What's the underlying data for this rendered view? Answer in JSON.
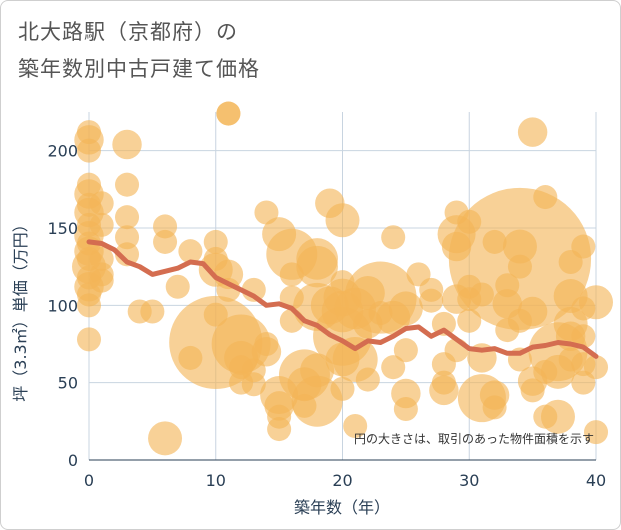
{
  "chart_data": {
    "type": "scatter",
    "title_lines": [
      "北大路駅（京都府）の",
      "築年数別中古戸建て価格"
    ],
    "xlabel": "築年数（年）",
    "ylabel": "坪（3.3㎡）単価（万円）",
    "xlim": [
      0,
      40
    ],
    "ylim": [
      0,
      225
    ],
    "x_ticks": [
      "0",
      "10",
      "20",
      "30",
      "40"
    ],
    "y_ticks": [
      "0",
      "50",
      "100",
      "150",
      "200"
    ],
    "grid": true,
    "note": "円の大きさは、取引のあった物件面積を示す",
    "colors": {
      "bubble": "#f3b457",
      "trend": "#d46d50",
      "grid": "#c8d4e0"
    },
    "series": [
      {
        "name": "取引",
        "points": [
          {
            "x": 0,
            "y": 212,
            "s": 2
          },
          {
            "x": 0,
            "y": 207,
            "s": 3
          },
          {
            "x": 0,
            "y": 200,
            "s": 2
          },
          {
            "x": 0,
            "y": 178,
            "s": 2
          },
          {
            "x": 0,
            "y": 172,
            "s": 3
          },
          {
            "x": 0,
            "y": 165,
            "s": 2
          },
          {
            "x": 0,
            "y": 160,
            "s": 3
          },
          {
            "x": 0,
            "y": 152,
            "s": 2
          },
          {
            "x": 0,
            "y": 145,
            "s": 3
          },
          {
            "x": 0,
            "y": 140,
            "s": 2
          },
          {
            "x": 0,
            "y": 135,
            "s": 3
          },
          {
            "x": 0,
            "y": 130,
            "s": 2
          },
          {
            "x": 0,
            "y": 125,
            "s": 4
          },
          {
            "x": 0,
            "y": 118,
            "s": 2
          },
          {
            "x": 0,
            "y": 112,
            "s": 3
          },
          {
            "x": 0,
            "y": 107,
            "s": 2
          },
          {
            "x": 0,
            "y": 100,
            "s": 2
          },
          {
            "x": 0,
            "y": 78,
            "s": 2
          },
          {
            "x": 1,
            "y": 166,
            "s": 2
          },
          {
            "x": 1,
            "y": 152,
            "s": 2
          },
          {
            "x": 1,
            "y": 130,
            "s": 2
          },
          {
            "x": 1,
            "y": 120,
            "s": 2
          },
          {
            "x": 1,
            "y": 116,
            "s": 2
          },
          {
            "x": 3,
            "y": 204,
            "s": 3
          },
          {
            "x": 3,
            "y": 178,
            "s": 2
          },
          {
            "x": 3,
            "y": 157,
            "s": 2
          },
          {
            "x": 3,
            "y": 144,
            "s": 2
          },
          {
            "x": 3,
            "y": 133,
            "s": 2
          },
          {
            "x": 4,
            "y": 96,
            "s": 2
          },
          {
            "x": 5,
            "y": 96,
            "s": 2
          },
          {
            "x": 6,
            "y": 151,
            "s": 2
          },
          {
            "x": 6,
            "y": 141,
            "s": 2
          },
          {
            "x": 6,
            "y": 14,
            "s": 4
          },
          {
            "x": 7,
            "y": 112,
            "s": 2
          },
          {
            "x": 8,
            "y": 135,
            "s": 2
          },
          {
            "x": 8,
            "y": 66,
            "s": 2
          },
          {
            "x": 10,
            "y": 141,
            "s": 2
          },
          {
            "x": 10,
            "y": 130,
            "s": 2
          },
          {
            "x": 10,
            "y": 123,
            "s": 4
          },
          {
            "x": 10,
            "y": 94,
            "s": 2
          },
          {
            "x": 10,
            "y": 76,
            "s": 30
          },
          {
            "x": 11,
            "y": 224,
            "s": 2
          },
          {
            "x": 11,
            "y": 224,
            "s": 2
          },
          {
            "x": 11,
            "y": 120,
            "s": 3
          },
          {
            "x": 11,
            "y": 110,
            "s": 2
          },
          {
            "x": 12,
            "y": 75,
            "s": 12
          },
          {
            "x": 12,
            "y": 66,
            "s": 4
          },
          {
            "x": 12,
            "y": 60,
            "s": 2
          },
          {
            "x": 12,
            "y": 50,
            "s": 2
          },
          {
            "x": 13,
            "y": 110,
            "s": 2
          },
          {
            "x": 13,
            "y": 58,
            "s": 2
          },
          {
            "x": 13,
            "y": 49,
            "s": 2
          },
          {
            "x": 14,
            "y": 160,
            "s": 2
          },
          {
            "x": 14,
            "y": 75,
            "s": 2
          },
          {
            "x": 14,
            "y": 70,
            "s": 3
          },
          {
            "x": 15,
            "y": 146,
            "s": 4
          },
          {
            "x": 15,
            "y": 42,
            "s": 5
          },
          {
            "x": 15,
            "y": 35,
            "s": 3
          },
          {
            "x": 15,
            "y": 28,
            "s": 2
          },
          {
            "x": 15,
            "y": 20,
            "s": 2
          },
          {
            "x": 16,
            "y": 133,
            "s": 9
          },
          {
            "x": 16,
            "y": 120,
            "s": 2
          },
          {
            "x": 16,
            "y": 105,
            "s": 2
          },
          {
            "x": 16,
            "y": 90,
            "s": 2
          },
          {
            "x": 17,
            "y": 55,
            "s": 9
          },
          {
            "x": 17,
            "y": 49,
            "s": 4
          },
          {
            "x": 17,
            "y": 35,
            "s": 2
          },
          {
            "x": 18,
            "y": 130,
            "s": 6
          },
          {
            "x": 18,
            "y": 125,
            "s": 6
          },
          {
            "x": 18,
            "y": 99,
            "s": 8
          },
          {
            "x": 18,
            "y": 58,
            "s": 4
          },
          {
            "x": 18,
            "y": 38,
            "s": 9
          },
          {
            "x": 19,
            "y": 166,
            "s": 3
          },
          {
            "x": 19,
            "y": 100,
            "s": 5
          },
          {
            "x": 20,
            "y": 155,
            "s": 4
          },
          {
            "x": 20,
            "y": 115,
            "s": 2
          },
          {
            "x": 20,
            "y": 105,
            "s": 5
          },
          {
            "x": 20,
            "y": 96,
            "s": 6
          },
          {
            "x": 20,
            "y": 80,
            "s": 12
          },
          {
            "x": 20,
            "y": 65,
            "s": 4
          },
          {
            "x": 20,
            "y": 46,
            "s": 2
          },
          {
            "x": 21,
            "y": 98,
            "s": 6
          },
          {
            "x": 21,
            "y": 65,
            "s": 7
          },
          {
            "x": 21,
            "y": 22,
            "s": 2
          },
          {
            "x": 22,
            "y": 88,
            "s": 3
          },
          {
            "x": 22,
            "y": 52,
            "s": 2
          },
          {
            "x": 22,
            "y": 108,
            "s": 4
          },
          {
            "x": 23,
            "y": 105,
            "s": 18
          },
          {
            "x": 23,
            "y": 95,
            "s": 2
          },
          {
            "x": 24,
            "y": 144,
            "s": 2
          },
          {
            "x": 24,
            "y": 92,
            "s": 4
          },
          {
            "x": 24,
            "y": 60,
            "s": 2
          },
          {
            "x": 25,
            "y": 98,
            "s": 4
          },
          {
            "x": 25,
            "y": 71,
            "s": 2
          },
          {
            "x": 25,
            "y": 43,
            "s": 3
          },
          {
            "x": 25,
            "y": 33,
            "s": 2
          },
          {
            "x": 26,
            "y": 120,
            "s": 2
          },
          {
            "x": 27,
            "y": 110,
            "s": 2
          },
          {
            "x": 27,
            "y": 103,
            "s": 2
          },
          {
            "x": 28,
            "y": 88,
            "s": 2
          },
          {
            "x": 28,
            "y": 62,
            "s": 2
          },
          {
            "x": 28,
            "y": 50,
            "s": 2
          },
          {
            "x": 28,
            "y": 45,
            "s": 3
          },
          {
            "x": 29,
            "y": 160,
            "s": 2
          },
          {
            "x": 29,
            "y": 146,
            "s": 5
          },
          {
            "x": 29,
            "y": 138,
            "s": 3
          },
          {
            "x": 29,
            "y": 104,
            "s": 3
          },
          {
            "x": 29,
            "y": 71,
            "s": 2
          },
          {
            "x": 30,
            "y": 154,
            "s": 2
          },
          {
            "x": 30,
            "y": 112,
            "s": 2
          },
          {
            "x": 30,
            "y": 104,
            "s": 2
          },
          {
            "x": 30,
            "y": 90,
            "s": 2
          },
          {
            "x": 31,
            "y": 107,
            "s": 2
          },
          {
            "x": 31,
            "y": 66,
            "s": 3
          },
          {
            "x": 31,
            "y": 40,
            "s": 8
          },
          {
            "x": 32,
            "y": 141,
            "s": 2
          },
          {
            "x": 32,
            "y": 42,
            "s": 3
          },
          {
            "x": 32,
            "y": 34,
            "s": 2
          },
          {
            "x": 33,
            "y": 113,
            "s": 2
          },
          {
            "x": 33,
            "y": 101,
            "s": 3
          },
          {
            "x": 33,
            "y": 84,
            "s": 2
          },
          {
            "x": 34,
            "y": 130,
            "s": 70
          },
          {
            "x": 34,
            "y": 138,
            "s": 4
          },
          {
            "x": 34,
            "y": 125,
            "s": 2
          },
          {
            "x": 34,
            "y": 90,
            "s": 2
          },
          {
            "x": 34,
            "y": 65,
            "s": 2
          },
          {
            "x": 35,
            "y": 212,
            "s": 3
          },
          {
            "x": 35,
            "y": 96,
            "s": 3
          },
          {
            "x": 35,
            "y": 51,
            "s": 3
          },
          {
            "x": 35,
            "y": 45,
            "s": 2
          },
          {
            "x": 36,
            "y": 170,
            "s": 2
          },
          {
            "x": 36,
            "y": 57,
            "s": 2
          },
          {
            "x": 36,
            "y": 28,
            "s": 2
          },
          {
            "x": 37,
            "y": 70,
            "s": 12
          },
          {
            "x": 37,
            "y": 57,
            "s": 4
          },
          {
            "x": 37,
            "y": 28,
            "s": 4
          },
          {
            "x": 38,
            "y": 128,
            "s": 2
          },
          {
            "x": 38,
            "y": 106,
            "s": 4
          },
          {
            "x": 38,
            "y": 88,
            "s": 4
          },
          {
            "x": 38,
            "y": 80,
            "s": 3
          },
          {
            "x": 38,
            "y": 65,
            "s": 2
          },
          {
            "x": 39,
            "y": 138,
            "s": 2
          },
          {
            "x": 39,
            "y": 98,
            "s": 2
          },
          {
            "x": 39,
            "y": 80,
            "s": 2
          },
          {
            "x": 39,
            "y": 62,
            "s": 2
          },
          {
            "x": 39,
            "y": 50,
            "s": 2
          },
          {
            "x": 40,
            "y": 102,
            "s": 4
          },
          {
            "x": 40,
            "y": 60,
            "s": 2
          },
          {
            "x": 40,
            "y": 18,
            "s": 2
          }
        ]
      },
      {
        "name": "トレンド",
        "line": [
          {
            "x": 0,
            "y": 141
          },
          {
            "x": 1,
            "y": 140
          },
          {
            "x": 2,
            "y": 136
          },
          {
            "x": 3,
            "y": 128
          },
          {
            "x": 4,
            "y": 125
          },
          {
            "x": 5,
            "y": 120
          },
          {
            "x": 6,
            "y": 122
          },
          {
            "x": 7,
            "y": 124
          },
          {
            "x": 8,
            "y": 128
          },
          {
            "x": 9,
            "y": 127
          },
          {
            "x": 10,
            "y": 118
          },
          {
            "x": 11,
            "y": 114
          },
          {
            "x": 12,
            "y": 110
          },
          {
            "x": 13,
            "y": 106
          },
          {
            "x": 14,
            "y": 100
          },
          {
            "x": 15,
            "y": 101
          },
          {
            "x": 16,
            "y": 98
          },
          {
            "x": 17,
            "y": 90
          },
          {
            "x": 18,
            "y": 87
          },
          {
            "x": 19,
            "y": 81
          },
          {
            "x": 20,
            "y": 77
          },
          {
            "x": 21,
            "y": 72
          },
          {
            "x": 22,
            "y": 77
          },
          {
            "x": 23,
            "y": 76
          },
          {
            "x": 24,
            "y": 80
          },
          {
            "x": 25,
            "y": 85
          },
          {
            "x": 26,
            "y": 86
          },
          {
            "x": 27,
            "y": 80
          },
          {
            "x": 28,
            "y": 84
          },
          {
            "x": 29,
            "y": 78
          },
          {
            "x": 30,
            "y": 72
          },
          {
            "x": 31,
            "y": 71
          },
          {
            "x": 32,
            "y": 72
          },
          {
            "x": 33,
            "y": 69
          },
          {
            "x": 34,
            "y": 69
          },
          {
            "x": 35,
            "y": 73
          },
          {
            "x": 36,
            "y": 74
          },
          {
            "x": 37,
            "y": 76
          },
          {
            "x": 38,
            "y": 75
          },
          {
            "x": 39,
            "y": 73
          },
          {
            "x": 40,
            "y": 67
          }
        ]
      }
    ]
  }
}
